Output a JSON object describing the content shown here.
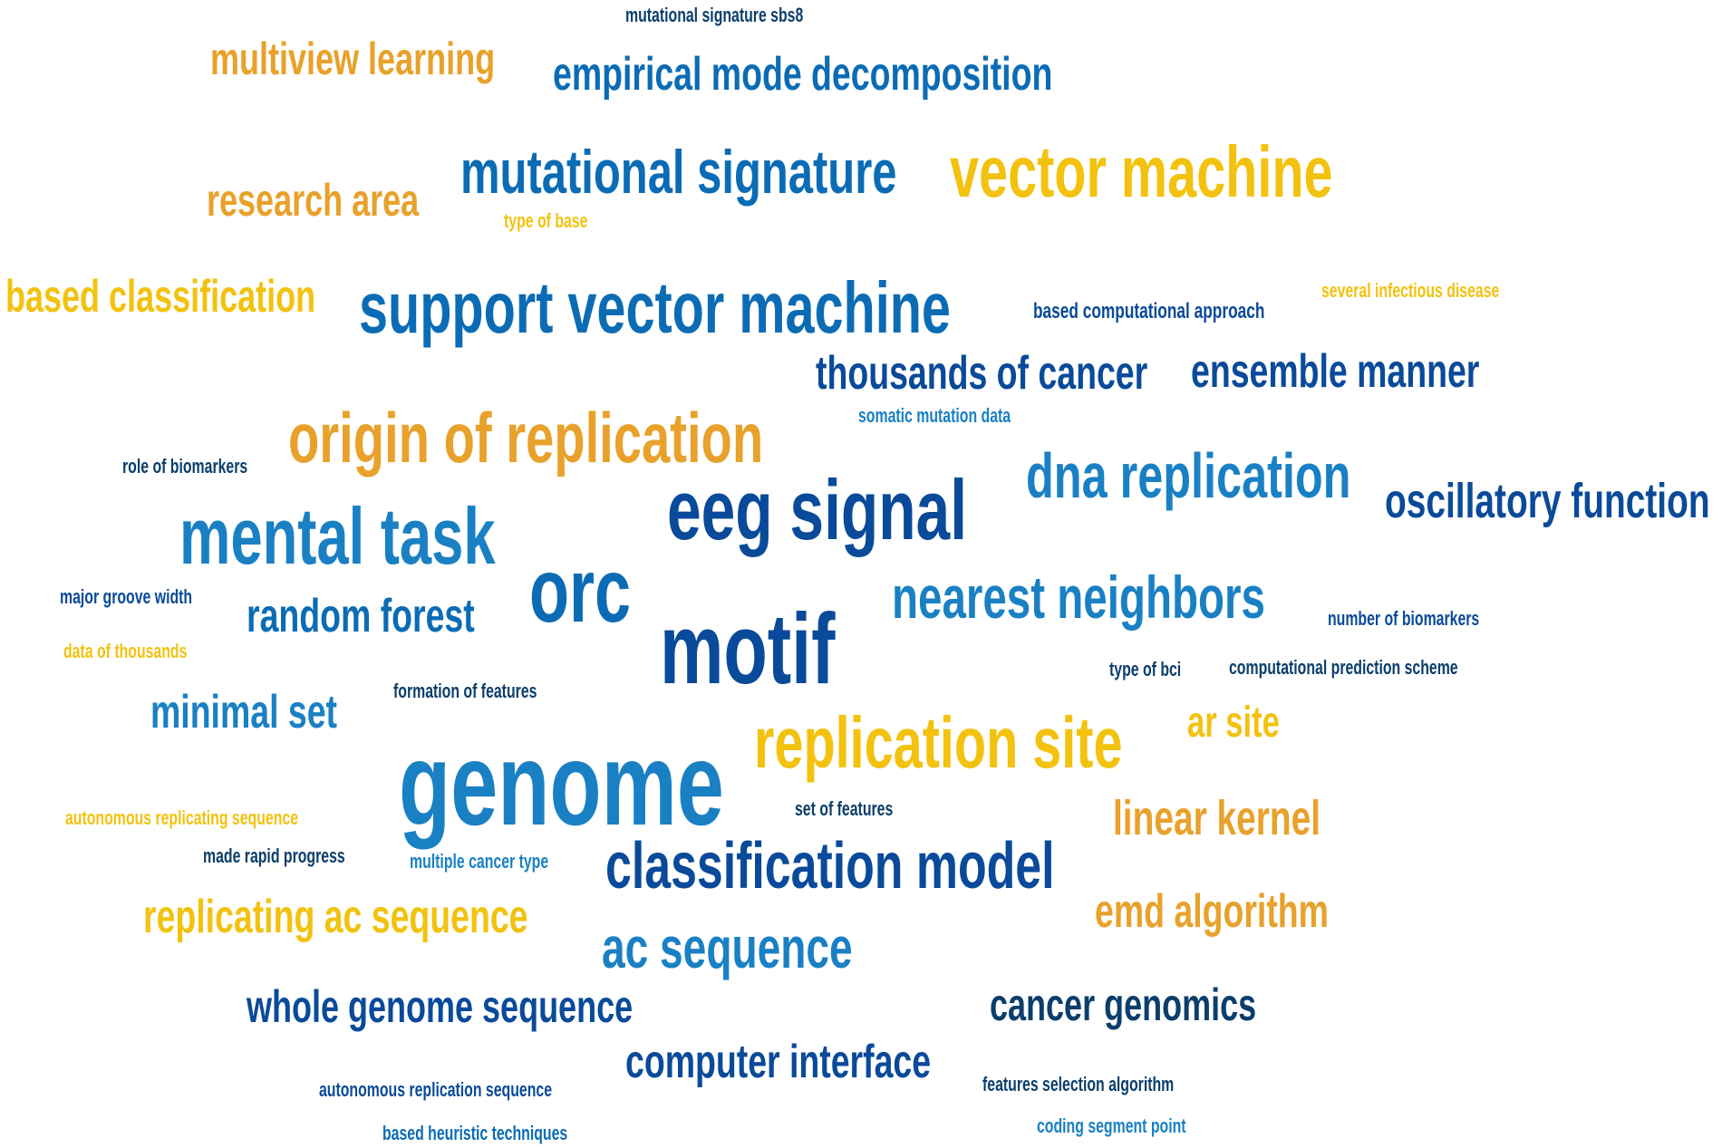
{
  "colors": {
    "navy": "#0a4a9a",
    "blue": "#0b6cb5",
    "light_blue": "#1a80c4",
    "teal_navy": "#0b3e6b",
    "orange": "#e8a12a",
    "yellow": "#f2c20f"
  },
  "words": [
    {
      "id": "mutational-signature-sbs8",
      "text": "mutational signature sbs8",
      "color": "teal_navy"
    },
    {
      "id": "multiview-learning",
      "text": "multiview learning",
      "color": "orange"
    },
    {
      "id": "empirical-mode-decomposition",
      "text": "empirical mode decomposition",
      "color": "blue"
    },
    {
      "id": "mutational-signature",
      "text": "mutational signature",
      "color": "blue"
    },
    {
      "id": "vector-machine",
      "text": "vector machine",
      "color": "yellow"
    },
    {
      "id": "research-area",
      "text": "research area",
      "color": "orange"
    },
    {
      "id": "type-of-base",
      "text": "type of base",
      "color": "yellow"
    },
    {
      "id": "based-classification",
      "text": "based classification",
      "color": "yellow"
    },
    {
      "id": "support-vector-machine",
      "text": "support vector machine",
      "color": "blue"
    },
    {
      "id": "based-computational-approach",
      "text": "based computational approach",
      "color": "navy"
    },
    {
      "id": "several-infectious-disease",
      "text": "several infectious disease",
      "color": "yellow"
    },
    {
      "id": "thousands-of-cancer",
      "text": "thousands of cancer",
      "color": "navy"
    },
    {
      "id": "ensemble-manner",
      "text": "ensemble manner",
      "color": "navy"
    },
    {
      "id": "origin-of-replication",
      "text": "origin of replication",
      "color": "orange"
    },
    {
      "id": "somatic-mutation-data",
      "text": "somatic mutation data",
      "color": "light_blue"
    },
    {
      "id": "role-of-biomarkers",
      "text": "role of biomarkers",
      "color": "teal_navy"
    },
    {
      "id": "dna-replication",
      "text": "dna replication",
      "color": "light_blue"
    },
    {
      "id": "oscillatory-function",
      "text": "oscillatory function",
      "color": "navy"
    },
    {
      "id": "eeg-signal",
      "text": "eeg signal",
      "color": "navy"
    },
    {
      "id": "mental-task",
      "text": "mental task",
      "color": "light_blue"
    },
    {
      "id": "orc",
      "text": "orc",
      "color": "blue"
    },
    {
      "id": "major-groove-width",
      "text": "major groove width",
      "color": "navy"
    },
    {
      "id": "random-forest",
      "text": "random forest",
      "color": "blue"
    },
    {
      "id": "nearest-neighbors",
      "text": "nearest neighbors",
      "color": "light_blue"
    },
    {
      "id": "number-of-biomarkers",
      "text": "number of biomarkers",
      "color": "navy"
    },
    {
      "id": "data-of-thousands",
      "text": "data of thousands",
      "color": "yellow"
    },
    {
      "id": "motif",
      "text": "motif",
      "color": "navy"
    },
    {
      "id": "type-of-bci",
      "text": "type of bci",
      "color": "teal_navy"
    },
    {
      "id": "computational-prediction-scheme",
      "text": "computational prediction scheme",
      "color": "teal_navy"
    },
    {
      "id": "minimal-set",
      "text": "minimal set",
      "color": "light_blue"
    },
    {
      "id": "formation-of-features",
      "text": "formation of features",
      "color": "teal_navy"
    },
    {
      "id": "ar-site",
      "text": "ar site",
      "color": "yellow"
    },
    {
      "id": "genome",
      "text": "genome",
      "color": "light_blue"
    },
    {
      "id": "replication-site",
      "text": "replication site",
      "color": "yellow"
    },
    {
      "id": "autonomous-replicating-sequence",
      "text": "autonomous replicating sequence",
      "color": "yellow"
    },
    {
      "id": "set-of-features",
      "text": "set of features",
      "color": "teal_navy"
    },
    {
      "id": "linear-kernel",
      "text": "linear kernel",
      "color": "orange"
    },
    {
      "id": "made-rapid-progress",
      "text": "made rapid progress",
      "color": "teal_navy"
    },
    {
      "id": "multiple-cancer-type",
      "text": "multiple cancer type",
      "color": "light_blue"
    },
    {
      "id": "classification-model",
      "text": "classification model",
      "color": "navy"
    },
    {
      "id": "replicating-ac-sequence",
      "text": "replicating ac sequence",
      "color": "yellow"
    },
    {
      "id": "emd-algorithm",
      "text": "emd algorithm",
      "color": "orange"
    },
    {
      "id": "ac-sequence",
      "text": "ac sequence",
      "color": "light_blue"
    },
    {
      "id": "whole-genome-sequence",
      "text": "whole genome sequence",
      "color": "navy"
    },
    {
      "id": "cancer-genomics",
      "text": "cancer genomics",
      "color": "teal_navy"
    },
    {
      "id": "computer-interface",
      "text": "computer interface",
      "color": "navy"
    },
    {
      "id": "autonomous-replication-sequence",
      "text": "autonomous replication sequence",
      "color": "navy"
    },
    {
      "id": "features-selection-algorithm",
      "text": "features selection algorithm",
      "color": "teal_navy"
    },
    {
      "id": "based-heuristic-techniques",
      "text": "based heuristic techniques",
      "color": "blue"
    },
    {
      "id": "coding-segment-point",
      "text": "coding segment point",
      "color": "light_blue"
    }
  ]
}
